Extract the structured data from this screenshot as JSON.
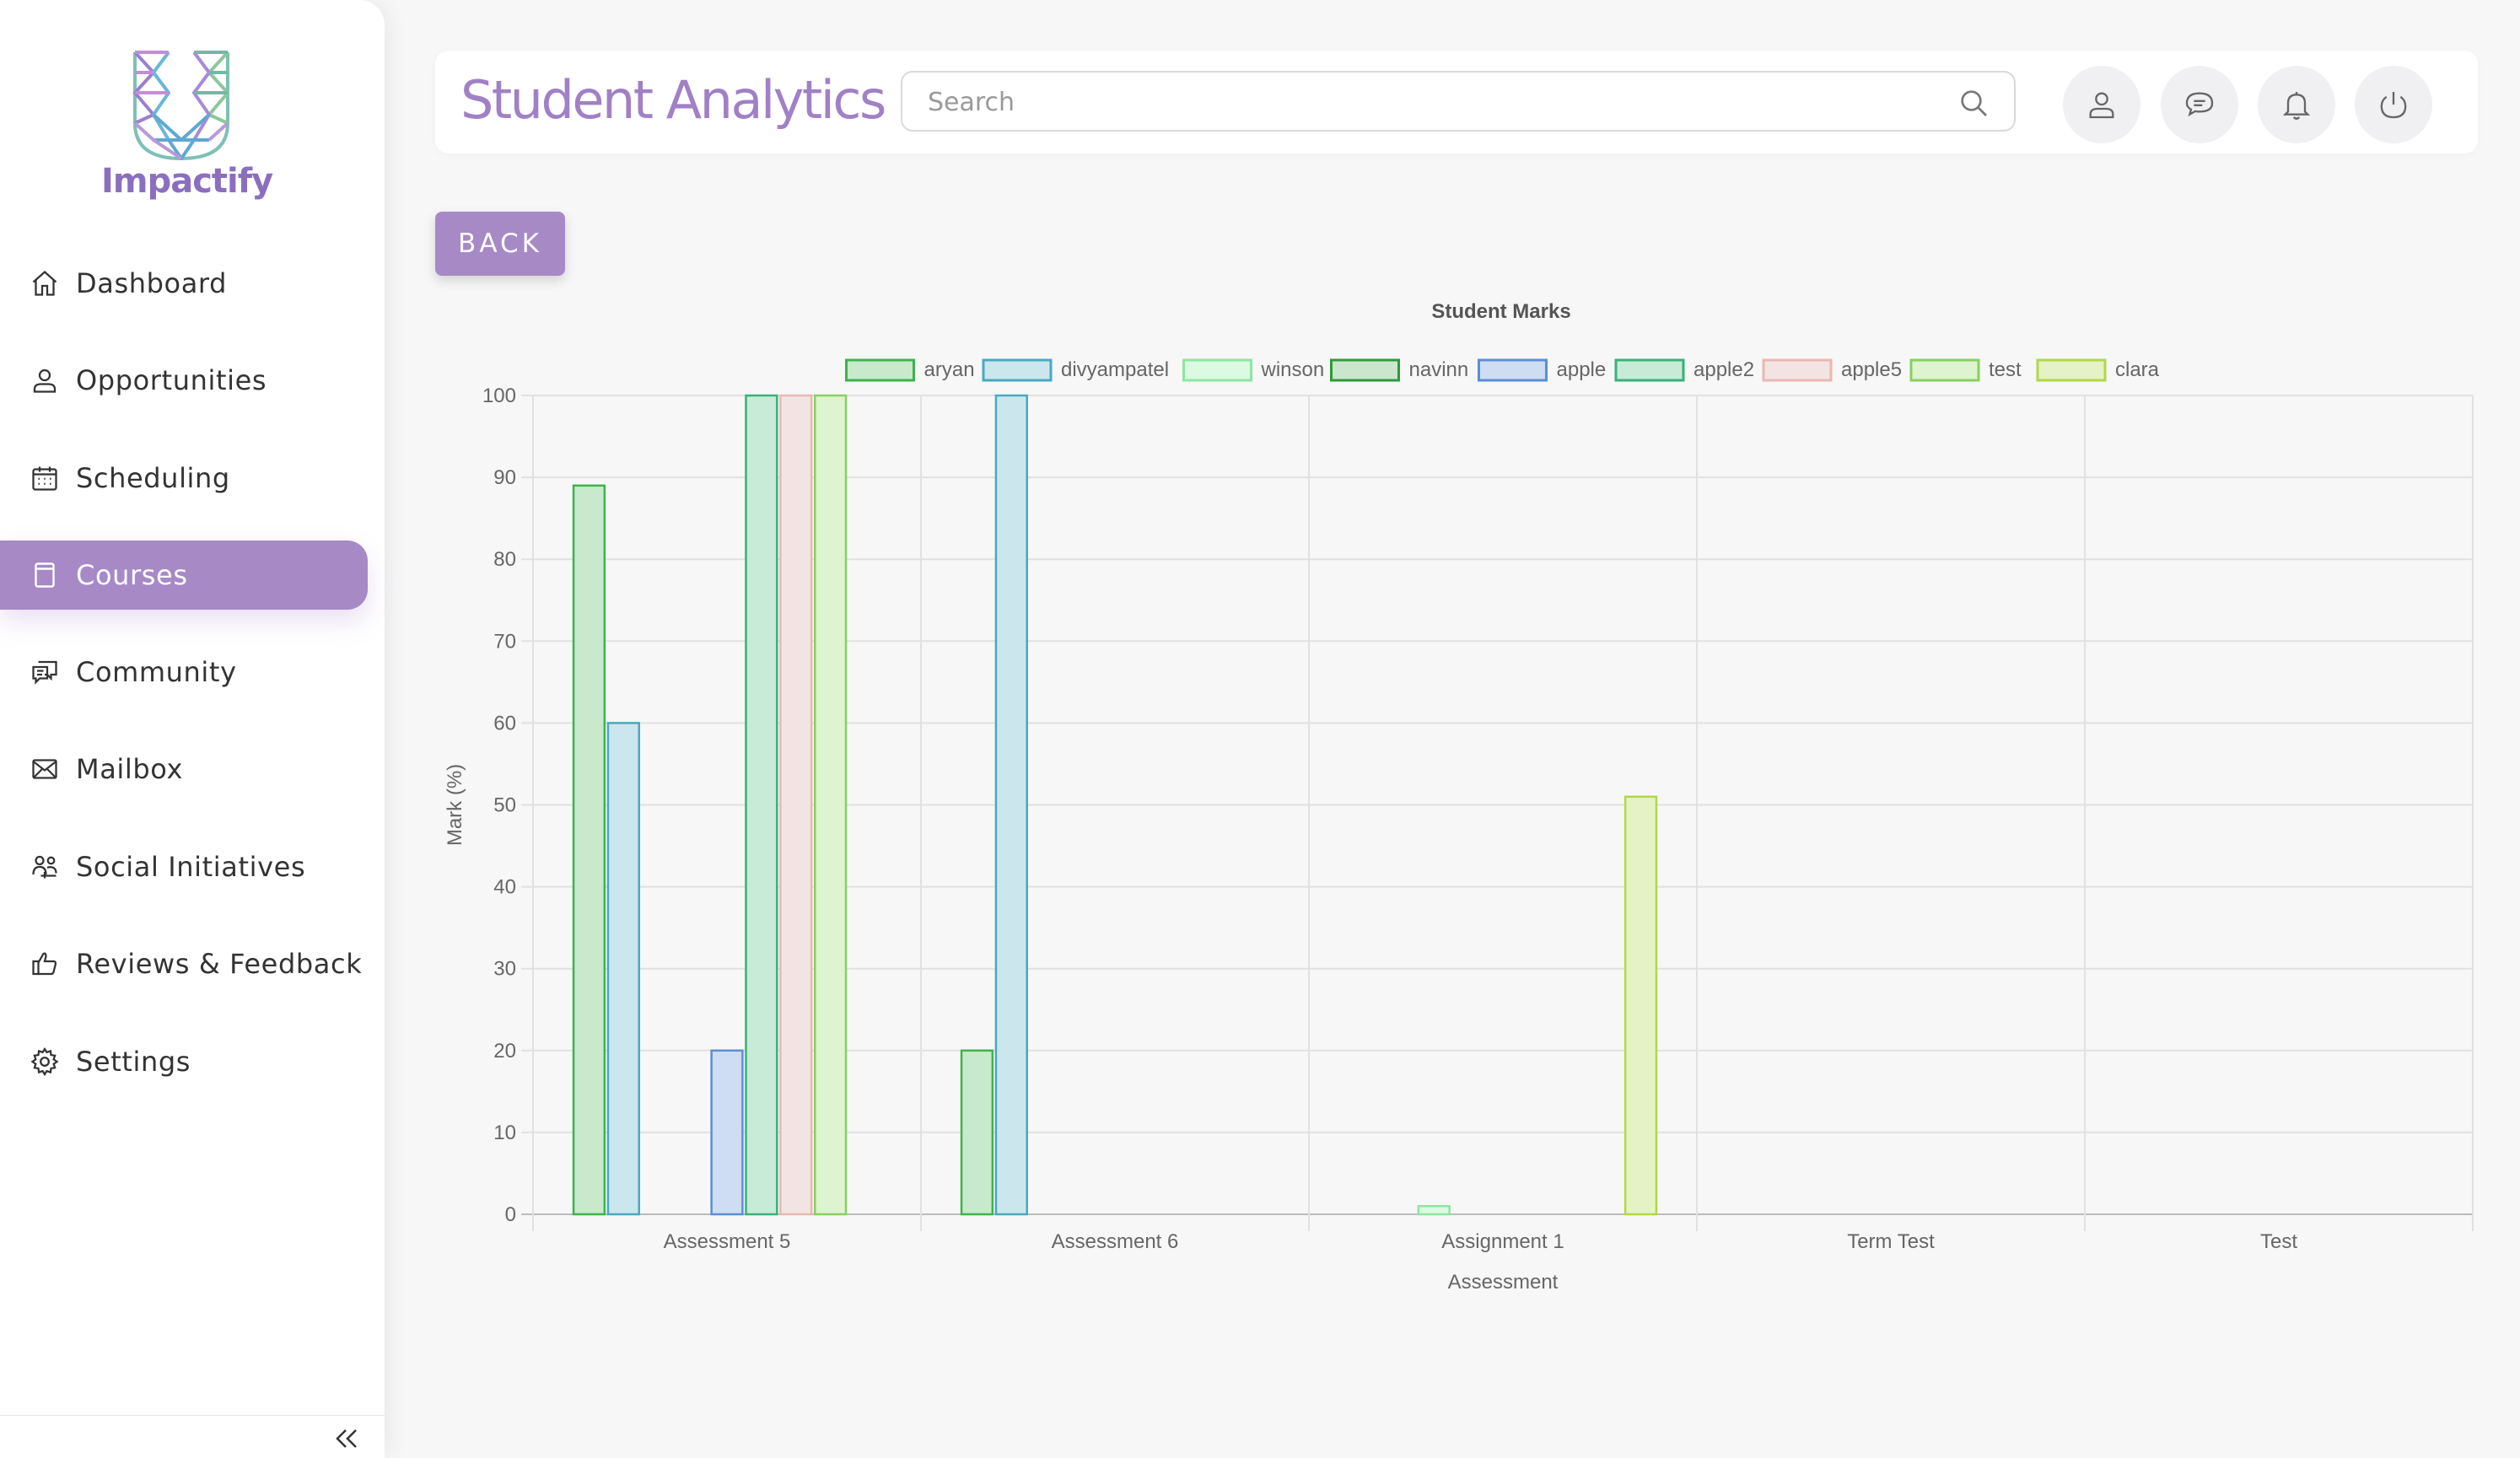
{
  "app": {
    "logo_text": "Impactify"
  },
  "sidebar": {
    "items": [
      {
        "label": "Dashboard",
        "icon": "home-icon",
        "active": false
      },
      {
        "label": "Opportunities",
        "icon": "user-icon",
        "active": false
      },
      {
        "label": "Scheduling",
        "icon": "calendar-icon",
        "active": false
      },
      {
        "label": "Courses",
        "icon": "book-icon",
        "active": true
      },
      {
        "label": "Community",
        "icon": "chat-icon",
        "active": false
      },
      {
        "label": "Mailbox",
        "icon": "mail-icon",
        "active": false
      },
      {
        "label": "Social Initiatives",
        "icon": "people-icon",
        "active": false
      },
      {
        "label": "Reviews & Feedback",
        "icon": "thumbs-up-icon",
        "active": false
      },
      {
        "label": "Settings",
        "icon": "gear-icon",
        "active": false
      }
    ],
    "collapse_icon": "double-chevron-left-icon"
  },
  "header": {
    "title": "Student Analytics",
    "search_placeholder": "Search",
    "buttons": [
      "profile-icon",
      "message-icon",
      "bell-icon",
      "power-icon"
    ]
  },
  "back_button": {
    "label": "BACK"
  },
  "colors": {
    "accent": "#a789c6",
    "title": "#a180c6"
  },
  "chart_data": {
    "type": "bar",
    "title": "Student Marks",
    "xlabel": "Assessment",
    "ylabel": "Mark (%)",
    "ylim": [
      0,
      100
    ],
    "yticks": [
      0,
      10,
      20,
      30,
      40,
      50,
      60,
      70,
      80,
      90,
      100
    ],
    "categories": [
      "Assessment 5",
      "Assessment 6",
      "Assignment 1",
      "Term Test",
      "Test"
    ],
    "legend_position": "top",
    "grid": true,
    "series": [
      {
        "name": "aryan",
        "color": "#3cb44b",
        "fill": "#c8e9cb",
        "values": [
          89,
          20,
          0,
          0,
          0
        ]
      },
      {
        "name": "divyampatel",
        "color": "#4aa8c0",
        "fill": "#cbe6ec",
        "values": [
          60,
          100,
          0,
          0,
          0
        ]
      },
      {
        "name": "winson",
        "color": "#8ee6a0",
        "fill": "#dcf9e2",
        "values": [
          0,
          0,
          1,
          0,
          0
        ]
      },
      {
        "name": "navinn",
        "color": "#2e9a3a",
        "fill": "#cbe6cc",
        "values": [
          0,
          0,
          0,
          0,
          0
        ]
      },
      {
        "name": "apple",
        "color": "#5b8ed6",
        "fill": "#cfddf2",
        "values": [
          20,
          0,
          0,
          0,
          0
        ]
      },
      {
        "name": "apple2",
        "color": "#3ab07a",
        "fill": "#c8ebd8",
        "values": [
          100,
          0,
          0,
          0,
          0
        ]
      },
      {
        "name": "apple5",
        "color": "#e8b8b0",
        "fill": "#f2e4e2",
        "values": [
          100,
          0,
          0,
          0,
          0
        ]
      },
      {
        "name": "test",
        "color": "#88d060",
        "fill": "#def3d0",
        "values": [
          100,
          0,
          0,
          0,
          0
        ]
      },
      {
        "name": "clara",
        "color": "#b0d848",
        "fill": "#e5f2c6",
        "values": [
          0,
          0,
          51,
          0,
          0
        ]
      }
    ]
  }
}
